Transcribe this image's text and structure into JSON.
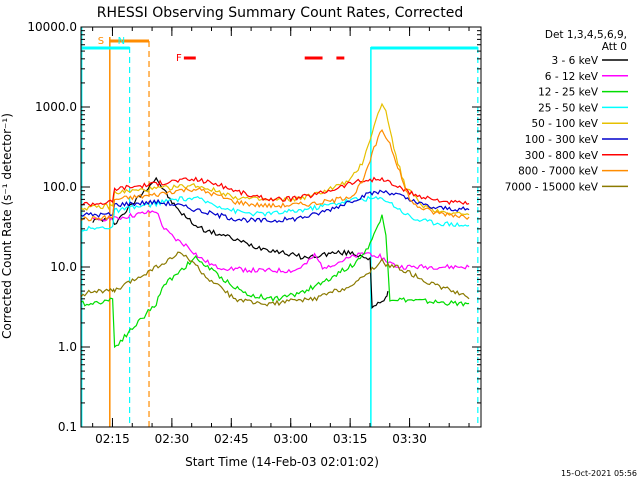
{
  "chart_data": {
    "type": "line",
    "title": "RHESSI Observing Summary Count Rates, Corrected",
    "xlabel": "Start Time (14-Feb-03 02:01:02)",
    "ylabel": "Corrected Count Rate (s⁻¹ detector⁻¹)",
    "yscale": "log",
    "ylim": [
      0.1,
      10000
    ],
    "xlim_min": [
      6.03,
      107
    ],
    "x_unit": "minutes since 02:01:02",
    "x_ticks": [
      {
        "label": "02:15",
        "min": 13.97
      },
      {
        "label": "02:30",
        "min": 28.97
      },
      {
        "label": "02:45",
        "min": 43.97
      },
      {
        "label": "03:00",
        "min": 58.97
      },
      {
        "label": "03:15",
        "min": 73.97
      },
      {
        "label": "03:30",
        "min": 88.97
      }
    ],
    "y_ticks": [
      {
        "label": "0.1",
        "value": 0.1
      },
      {
        "label": "1.0",
        "value": 1
      },
      {
        "label": "10.0",
        "value": 10
      },
      {
        "label": "100.0",
        "value": 100
      },
      {
        "label": "1000.0",
        "value": 1000
      },
      {
        "label": "10000.0",
        "value": 10000
      }
    ],
    "legend": {
      "header": [
        "Det 1,3,4,5,6,9,",
        "Att 0"
      ],
      "position": "right"
    },
    "series": [
      {
        "name": "3 - 6 keV",
        "color": "#000000",
        "points": [
          [
            9,
            38
          ],
          [
            14,
            40
          ],
          [
            14.5,
            35
          ],
          [
            25,
            130
          ],
          [
            27,
            90
          ],
          [
            30,
            55
          ],
          [
            33,
            40
          ],
          [
            35,
            33
          ],
          [
            38,
            28
          ],
          [
            42,
            25
          ],
          [
            45,
            22
          ],
          [
            50,
            18
          ],
          [
            55,
            16
          ],
          [
            60,
            14
          ],
          [
            63,
            13
          ],
          [
            66,
            14
          ],
          [
            70,
            15
          ],
          [
            74,
            15
          ],
          [
            79,
            13
          ],
          [
            79.5,
            3
          ],
          [
            83,
            4
          ],
          [
            83.5,
            5
          ]
        ]
      },
      {
        "name": "6 - 12 keV",
        "color": "#ff00ff",
        "points": [
          [
            9,
            38
          ],
          [
            14,
            42
          ],
          [
            14.5,
            40
          ],
          [
            25,
            50
          ],
          [
            27,
            30
          ],
          [
            30,
            22
          ],
          [
            33,
            18
          ],
          [
            36,
            13
          ],
          [
            40,
            10
          ],
          [
            45,
            9.5
          ],
          [
            50,
            9
          ],
          [
            55,
            9
          ],
          [
            60,
            9
          ],
          [
            63,
            11
          ],
          [
            65,
            14
          ],
          [
            67,
            10
          ],
          [
            70,
            11
          ],
          [
            74,
            13
          ],
          [
            78,
            15
          ],
          [
            81,
            14
          ],
          [
            83,
            12
          ],
          [
            86,
            10
          ],
          [
            88,
            10
          ],
          [
            90,
            10
          ],
          [
            92,
            10
          ],
          [
            96,
            10
          ],
          [
            98,
            10
          ],
          [
            102,
            10
          ],
          [
            104,
            10
          ]
        ]
      },
      {
        "name": "12 - 25 keV",
        "color": "#00dd00",
        "points": [
          [
            6,
            3.5
          ],
          [
            9,
            3.5
          ],
          [
            14,
            4
          ],
          [
            14.5,
            1
          ],
          [
            25,
            3.5
          ],
          [
            27,
            6
          ],
          [
            31,
            9
          ],
          [
            35,
            13
          ],
          [
            38,
            10
          ],
          [
            42,
            7
          ],
          [
            48,
            4.5
          ],
          [
            55,
            4
          ],
          [
            60,
            4.5
          ],
          [
            66,
            6
          ],
          [
            72,
            9
          ],
          [
            75,
            11
          ],
          [
            78,
            16
          ],
          [
            80,
            25
          ],
          [
            82,
            45
          ],
          [
            83,
            25
          ],
          [
            84,
            4
          ],
          [
            100,
            3.5
          ],
          [
            104,
            3.5
          ]
        ]
      },
      {
        "name": "25 - 50 keV",
        "color": "#00ffff",
        "points": [
          [
            6,
            30
          ],
          [
            9,
            30
          ],
          [
            14,
            32
          ],
          [
            14.5,
            50
          ],
          [
            25,
            62
          ],
          [
            30,
            70
          ],
          [
            35,
            72
          ],
          [
            40,
            60
          ],
          [
            45,
            50
          ],
          [
            50,
            46
          ],
          [
            55,
            47
          ],
          [
            60,
            50
          ],
          [
            65,
            55
          ],
          [
            70,
            62
          ],
          [
            75,
            70
          ],
          [
            80,
            72
          ],
          [
            83,
            70
          ],
          [
            87,
            50
          ],
          [
            90,
            40
          ],
          [
            95,
            36
          ],
          [
            104,
            33
          ]
        ]
      },
      {
        "name": "50 - 100 keV",
        "color": "#e6c000",
        "points": [
          [
            6,
            55
          ],
          [
            9,
            55
          ],
          [
            14,
            58
          ],
          [
            14.5,
            85
          ],
          [
            25,
            95
          ],
          [
            30,
            100
          ],
          [
            35,
            105
          ],
          [
            40,
            90
          ],
          [
            45,
            75
          ],
          [
            50,
            70
          ],
          [
            55,
            68
          ],
          [
            60,
            70
          ],
          [
            65,
            80
          ],
          [
            70,
            100
          ],
          [
            74,
            120
          ],
          [
            77,
            200
          ],
          [
            79,
            400
          ],
          [
            81,
            800
          ],
          [
            82,
            1150
          ],
          [
            83,
            900
          ],
          [
            84,
            500
          ],
          [
            86,
            200
          ],
          [
            88,
            100
          ],
          [
            92,
            60
          ],
          [
            96,
            50
          ],
          [
            100,
            48
          ],
          [
            104,
            45
          ]
        ]
      },
      {
        "name": "100 - 300 keV",
        "color": "#0000cc",
        "points": [
          [
            6,
            45
          ],
          [
            9,
            45
          ],
          [
            14,
            45
          ],
          [
            14.5,
            60
          ],
          [
            25,
            65
          ],
          [
            30,
            60
          ],
          [
            35,
            52
          ],
          [
            40,
            45
          ],
          [
            45,
            40
          ],
          [
            50,
            38
          ],
          [
            55,
            38
          ],
          [
            60,
            40
          ],
          [
            65,
            45
          ],
          [
            70,
            55
          ],
          [
            75,
            70
          ],
          [
            80,
            85
          ],
          [
            83,
            88
          ],
          [
            86,
            80
          ],
          [
            90,
            65
          ],
          [
            95,
            55
          ],
          [
            104,
            52
          ]
        ]
      },
      {
        "name": "300 - 800 keV",
        "color": "#ff0000",
        "points": [
          [
            6,
            62
          ],
          [
            9,
            62
          ],
          [
            14,
            65
          ],
          [
            14.5,
            95
          ],
          [
            25,
            110
          ],
          [
            30,
            120
          ],
          [
            35,
            125
          ],
          [
            40,
            110
          ],
          [
            45,
            90
          ],
          [
            50,
            75
          ],
          [
            55,
            70
          ],
          [
            60,
            72
          ],
          [
            65,
            80
          ],
          [
            70,
            95
          ],
          [
            75,
            115
          ],
          [
            80,
            125
          ],
          [
            83,
            120
          ],
          [
            86,
            100
          ],
          [
            90,
            80
          ],
          [
            95,
            70
          ],
          [
            100,
            64
          ],
          [
            104,
            62
          ]
        ]
      },
      {
        "name": "800 - 7000 keV",
        "color": "#ff8c00",
        "points": [
          [
            6,
            40
          ],
          [
            9,
            40
          ],
          [
            14,
            42
          ],
          [
            14.5,
            70
          ],
          [
            25,
            80
          ],
          [
            30,
            90
          ],
          [
            35,
            95
          ],
          [
            40,
            80
          ],
          [
            45,
            65
          ],
          [
            50,
            60
          ],
          [
            55,
            58
          ],
          [
            60,
            60
          ],
          [
            65,
            62
          ],
          [
            70,
            68
          ],
          [
            75,
            80
          ],
          [
            78,
            150
          ],
          [
            80,
            300
          ],
          [
            82,
            520
          ],
          [
            84,
            350
          ],
          [
            86,
            180
          ],
          [
            88,
            90
          ],
          [
            90,
            60
          ],
          [
            95,
            48
          ],
          [
            100,
            45
          ],
          [
            104,
            42
          ]
        ]
      },
      {
        "name": "7000 - 15000 keV",
        "color": "#8b7a00",
        "points": [
          [
            6,
            4.5
          ],
          [
            9,
            5
          ],
          [
            14,
            5
          ],
          [
            14.5,
            5
          ],
          [
            25,
            10
          ],
          [
            28,
            12
          ],
          [
            31,
            15
          ],
          [
            34,
            12
          ],
          [
            37,
            8
          ],
          [
            40,
            6
          ],
          [
            45,
            4
          ],
          [
            50,
            3.5
          ],
          [
            55,
            3.5
          ],
          [
            60,
            3.8
          ],
          [
            65,
            4
          ],
          [
            70,
            5
          ],
          [
            75,
            6
          ],
          [
            80,
            10
          ],
          [
            82,
            12
          ],
          [
            84,
            10
          ],
          [
            86,
            10
          ],
          [
            90,
            8
          ],
          [
            95,
            6
          ],
          [
            100,
            5
          ],
          [
            104,
            4
          ]
        ]
      }
    ],
    "markers": [
      {
        "label": "S",
        "color": "#ff8c00",
        "min": 13.3
      },
      {
        "label": "N",
        "color": "#00ffff",
        "min": 18.3
      }
    ],
    "flags": {
      "label": "F",
      "color": "#ff0000"
    },
    "footer": "15-Oct-2021 05:56"
  }
}
